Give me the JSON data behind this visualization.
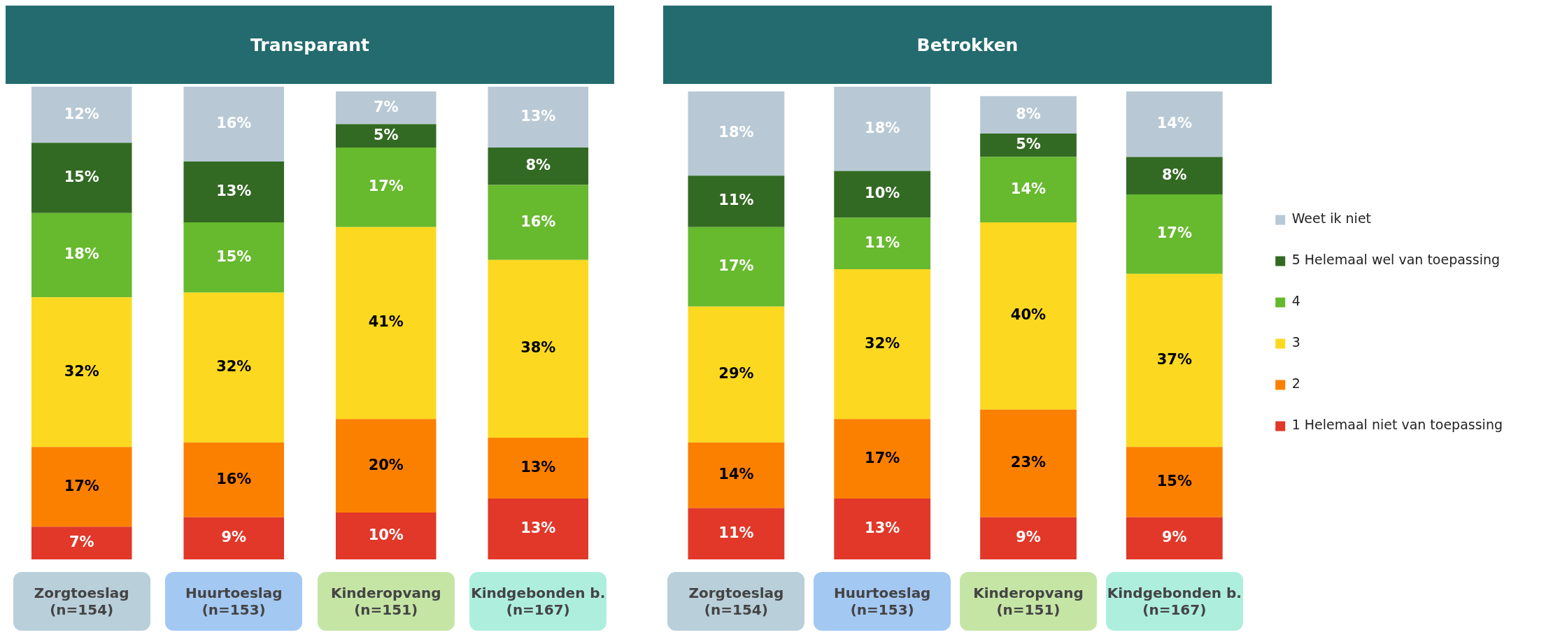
{
  "chart_data": [
    {
      "type": "bar",
      "title": "Transparant",
      "stacked": true,
      "categories": [
        "Zorgtoeslag\n(n=154)",
        "Huurtoeslag\n(n=153)",
        "Kinderopvang\n(n=151)",
        "Kindgebonden b.\n(n=167)"
      ],
      "legend": false,
      "series": [
        {
          "color": "#e13829",
          "values": [
            7,
            9,
            10,
            13
          ],
          "value_labels": [
            "7%",
            "9%",
            "10%",
            "13%"
          ]
        },
        {
          "color": "#fc8000",
          "values": [
            17,
            16,
            20,
            13
          ],
          "value_labels": [
            "17%",
            "16%",
            "20%",
            "13%"
          ]
        },
        {
          "color": "#fcd920",
          "values": [
            32,
            32,
            41,
            38
          ],
          "value_labels": [
            "32%",
            "32%",
            "41%",
            "38%"
          ]
        },
        {
          "color": "#67b92e",
          "values": [
            18,
            15,
            17,
            16
          ],
          "value_labels": [
            "18%",
            "15%",
            "17%",
            "16%"
          ]
        },
        {
          "color": "#336a23",
          "values": [
            15,
            13,
            5,
            8
          ],
          "value_labels": [
            "15%",
            "13%",
            "5%",
            "8%"
          ]
        },
        {
          "color": "#b8c9d5",
          "values": [
            12,
            16,
            7,
            13
          ],
          "value_labels": [
            "12%",
            "16%",
            "7%",
            "13%"
          ]
        }
      ]
    },
    {
      "type": "bar",
      "title": "Betrokken",
      "stacked": true,
      "categories": [
        "Zorgtoeslag\n(n=154)",
        "Huurtoeslag\n(n=153)",
        "Kinderopvang\n(n=151)",
        "Kindgebonden b.\n(n=167)"
      ],
      "legend": "right",
      "series": [
        {
          "name": "1 Helemaal niet van toepassing",
          "color": "#e13829",
          "values": [
            11,
            13,
            9,
            9
          ],
          "value_labels": [
            "11%",
            "13%",
            "9%",
            "9%"
          ]
        },
        {
          "name": "2",
          "color": "#fc8000",
          "values": [
            14,
            17,
            23,
            15
          ],
          "value_labels": [
            "14%",
            "17%",
            "23%",
            "15%"
          ]
        },
        {
          "name": "3",
          "color": "#fcd920",
          "values": [
            29,
            32,
            40,
            37
          ],
          "value_labels": [
            "29%",
            "32%",
            "40%",
            "37%"
          ]
        },
        {
          "name": "4",
          "color": "#67b92e",
          "values": [
            17,
            11,
            14,
            17
          ],
          "value_labels": [
            "17%",
            "11%",
            "14%",
            "17%"
          ]
        },
        {
          "name": "5 Helemaal wel van toepassing",
          "color": "#336a23",
          "values": [
            11,
            10,
            5,
            8
          ],
          "value_labels": [
            "11%",
            "10%",
            "5%",
            "8%"
          ]
        },
        {
          "name": "Weet ik niet",
          "color": "#b8c9d5",
          "values": [
            18,
            18,
            8,
            14
          ],
          "value_labels": [
            "18%",
            "18%",
            "8%",
            "14%"
          ]
        }
      ]
    }
  ]
}
